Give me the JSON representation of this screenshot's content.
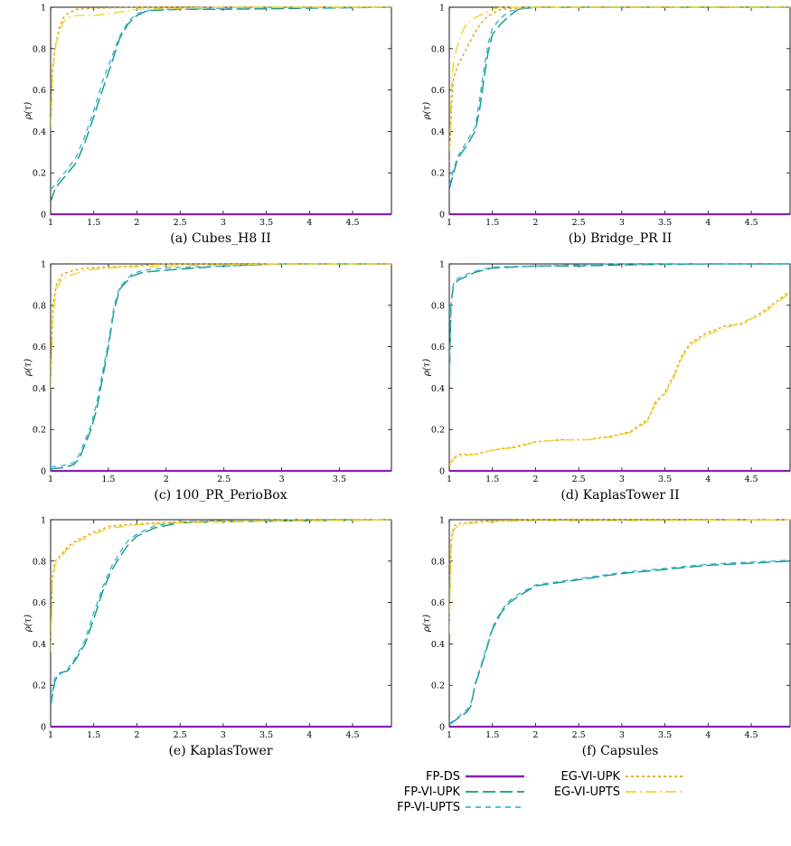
{
  "colors": {
    "fp_ds": "#8b1fb5",
    "fp_vi_upk": "#0f9b7a",
    "fp_vi_upts": "#3fb2e6",
    "eg_vi_upk": "#e3a10c",
    "eg_vi_upts": "#ecd72c"
  },
  "legend": {
    "fp_ds": "FP-DS",
    "fp_vi_upk": "FP-VI-UPK",
    "fp_vi_upts": "FP-VI-UPTS",
    "eg_vi_upk": "EG-VI-UPK",
    "eg_vi_upts": "EG-VI-UPTS"
  },
  "chart_data": [
    {
      "type": "line",
      "title": "(a)  Cubes_H8 II",
      "ylabel": "ρ(τ)",
      "xlabel": "",
      "xlim": [
        1,
        4.95
      ],
      "ylim": [
        0,
        1
      ],
      "xticks": [
        "1",
        "1.5",
        "2",
        "2.5",
        "3",
        "3.5",
        "4",
        "4.5"
      ],
      "yticks": [
        "0",
        "0.2",
        "0.4",
        "0.6",
        "0.8",
        "1"
      ],
      "grid": false,
      "series": [
        {
          "key": "fp_ds",
          "x": [
            1,
            4.95
          ],
          "y": [
            0,
            0
          ]
        },
        {
          "key": "fp_vi_upk",
          "x": [
            1,
            1.05,
            1.1,
            1.2,
            1.3,
            1.4,
            1.5,
            1.6,
            1.7,
            1.8,
            1.9,
            2.0,
            2.1,
            2.2,
            2.5,
            3,
            4,
            4.95
          ],
          "y": [
            0.06,
            0.12,
            0.15,
            0.2,
            0.25,
            0.35,
            0.47,
            0.6,
            0.72,
            0.85,
            0.92,
            0.96,
            0.98,
            0.985,
            0.99,
            0.99,
            0.995,
            1.0
          ]
        },
        {
          "key": "fp_vi_upts",
          "x": [
            1,
            1.05,
            1.1,
            1.2,
            1.3,
            1.4,
            1.5,
            1.6,
            1.7,
            1.8,
            1.9,
            2.0,
            2.1,
            2.2,
            2.5,
            3,
            4,
            4.95
          ],
          "y": [
            0.12,
            0.14,
            0.17,
            0.22,
            0.28,
            0.38,
            0.5,
            0.64,
            0.75,
            0.86,
            0.93,
            0.97,
            0.98,
            0.99,
            0.99,
            0.995,
            1.0,
            1.0
          ]
        },
        {
          "key": "eg_vi_upk",
          "x": [
            1,
            1.02,
            1.05,
            1.1,
            1.15,
            1.2,
            1.3,
            1.5,
            2,
            3,
            4.95
          ],
          "y": [
            0.4,
            0.7,
            0.8,
            0.9,
            0.95,
            0.97,
            0.99,
            0.995,
            1.0,
            1.0,
            1.0
          ]
        },
        {
          "key": "eg_vi_upts",
          "x": [
            1,
            1.02,
            1.05,
            1.1,
            1.15,
            1.2,
            1.3,
            1.5,
            1.7,
            2,
            2.5,
            3,
            4.95
          ],
          "y": [
            0.42,
            0.65,
            0.8,
            0.88,
            0.93,
            0.95,
            0.96,
            0.96,
            0.97,
            0.99,
            0.995,
            1.0,
            1.0
          ]
        }
      ]
    },
    {
      "type": "line",
      "title": "(b) Bridge_PR II",
      "ylabel": "ρ(τ)",
      "xlabel": "",
      "xlim": [
        1,
        4.95
      ],
      "ylim": [
        0,
        1
      ],
      "xticks": [
        "1",
        "1.5",
        "2",
        "2.5",
        "3",
        "3.5",
        "4",
        "4.5"
      ],
      "yticks": [
        "0",
        "0.2",
        "0.4",
        "0.6",
        "0.8",
        "1"
      ],
      "grid": false,
      "series": [
        {
          "key": "fp_ds",
          "x": [
            1,
            4.95
          ],
          "y": [
            0,
            0
          ]
        },
        {
          "key": "fp_vi_upk",
          "x": [
            1,
            1.05,
            1.1,
            1.2,
            1.3,
            1.35,
            1.4,
            1.45,
            1.5,
            1.6,
            1.7,
            1.8,
            2,
            3,
            4.95
          ],
          "y": [
            0.12,
            0.2,
            0.27,
            0.33,
            0.4,
            0.5,
            0.65,
            0.78,
            0.87,
            0.92,
            0.96,
            0.99,
            1.0,
            1.0,
            1.0
          ]
        },
        {
          "key": "fp_vi_upts",
          "x": [
            1,
            1.05,
            1.1,
            1.2,
            1.3,
            1.35,
            1.4,
            1.45,
            1.5,
            1.6,
            1.7,
            1.8,
            2,
            3,
            4.95
          ],
          "y": [
            0.14,
            0.22,
            0.28,
            0.35,
            0.42,
            0.55,
            0.7,
            0.82,
            0.9,
            0.95,
            0.98,
            0.99,
            1.0,
            1.0,
            1.0
          ]
        },
        {
          "key": "eg_vi_upk",
          "x": [
            1,
            1.03,
            1.05,
            1.1,
            1.2,
            1.3,
            1.4,
            1.5,
            1.6,
            2,
            4.95
          ],
          "y": [
            0.25,
            0.55,
            0.66,
            0.72,
            0.8,
            0.88,
            0.94,
            0.97,
            0.99,
            1.0,
            1.0
          ]
        },
        {
          "key": "eg_vi_upts",
          "x": [
            1,
            1.03,
            1.05,
            1.1,
            1.15,
            1.2,
            1.3,
            1.4,
            1.5,
            1.6,
            2,
            4.95
          ],
          "y": [
            0.3,
            0.65,
            0.75,
            0.82,
            0.88,
            0.92,
            0.95,
            0.97,
            0.99,
            1.0,
            1.0,
            1.0
          ]
        }
      ]
    },
    {
      "type": "line",
      "title": "(c) 100_PR_PerioBox",
      "ylabel": "ρ(τ)",
      "xlabel": "",
      "xlim": [
        1,
        3.95
      ],
      "ylim": [
        0,
        1
      ],
      "xticks": [
        "1",
        "1.5",
        "2",
        "2.5",
        "3",
        "3.5"
      ],
      "yticks": [
        "0",
        "0.2",
        "0.4",
        "0.6",
        "0.8",
        "1"
      ],
      "grid": false,
      "series": [
        {
          "key": "fp_ds",
          "x": [
            1,
            3.95
          ],
          "y": [
            0,
            0
          ]
        },
        {
          "key": "fp_vi_upk",
          "x": [
            1,
            1.1,
            1.2,
            1.25,
            1.3,
            1.35,
            1.4,
            1.45,
            1.5,
            1.55,
            1.6,
            1.7,
            1.8,
            2,
            2.5,
            3,
            3.95
          ],
          "y": [
            0.01,
            0.015,
            0.03,
            0.06,
            0.13,
            0.2,
            0.3,
            0.45,
            0.6,
            0.78,
            0.88,
            0.94,
            0.96,
            0.97,
            0.99,
            1.0,
            1.0
          ]
        },
        {
          "key": "fp_vi_upts",
          "x": [
            1,
            1.1,
            1.2,
            1.25,
            1.3,
            1.35,
            1.4,
            1.45,
            1.5,
            1.55,
            1.6,
            1.7,
            1.8,
            2,
            2.5,
            3,
            3.95
          ],
          "y": [
            0.02,
            0.025,
            0.04,
            0.08,
            0.15,
            0.22,
            0.33,
            0.48,
            0.62,
            0.8,
            0.89,
            0.95,
            0.97,
            0.98,
            0.99,
            1.0,
            1.0
          ]
        },
        {
          "key": "eg_vi_upk",
          "x": [
            1,
            1.02,
            1.05,
            1.1,
            1.2,
            1.3,
            1.5,
            1.7,
            2,
            3,
            3.95
          ],
          "y": [
            0.45,
            0.8,
            0.9,
            0.95,
            0.97,
            0.98,
            0.985,
            0.99,
            1.0,
            1.0,
            1.0
          ]
        },
        {
          "key": "eg_vi_upts",
          "x": [
            1,
            1.02,
            1.05,
            1.1,
            1.2,
            1.3,
            1.5,
            1.7,
            2,
            2.5,
            3,
            3.95
          ],
          "y": [
            0.4,
            0.75,
            0.88,
            0.93,
            0.95,
            0.97,
            0.98,
            0.985,
            0.99,
            0.995,
            1.0,
            1.0
          ]
        }
      ]
    },
    {
      "type": "line",
      "title": "(d) KaplasTower II",
      "ylabel": "ρ(τ)",
      "xlabel": "",
      "xlim": [
        1,
        4.95
      ],
      "ylim": [
        0,
        1
      ],
      "xticks": [
        "1",
        "1.5",
        "2",
        "2.5",
        "3",
        "3.5",
        "4",
        "4.5"
      ],
      "yticks": [
        "0",
        "0.2",
        "0.4",
        "0.6",
        "0.8",
        "1"
      ],
      "grid": false,
      "series": [
        {
          "key": "fp_ds",
          "x": [
            1,
            4.95
          ],
          "y": [
            0,
            0
          ]
        },
        {
          "key": "fp_vi_upk",
          "x": [
            1,
            1.02,
            1.05,
            1.1,
            1.2,
            1.3,
            1.5,
            2,
            2.5,
            3,
            4,
            4.95
          ],
          "y": [
            0.42,
            0.8,
            0.9,
            0.92,
            0.94,
            0.96,
            0.98,
            0.99,
            0.99,
            0.995,
            1.0,
            1.0
          ]
        },
        {
          "key": "fp_vi_upts",
          "x": [
            1,
            1.02,
            1.05,
            1.1,
            1.2,
            1.3,
            1.5,
            2,
            2.5,
            3,
            4,
            4.95
          ],
          "y": [
            0.45,
            0.82,
            0.91,
            0.93,
            0.95,
            0.965,
            0.985,
            0.99,
            0.995,
            1.0,
            1.0,
            1.0
          ]
        },
        {
          "key": "eg_vi_upk",
          "x": [
            1,
            1.05,
            1.1,
            1.3,
            1.5,
            1.8,
            2,
            2.3,
            2.6,
            2.9,
            3.1,
            3.3,
            3.4,
            3.5,
            3.6,
            3.7,
            3.8,
            4.0,
            4.2,
            4.4,
            4.6,
            4.8,
            4.95
          ],
          "y": [
            0.02,
            0.06,
            0.08,
            0.08,
            0.1,
            0.12,
            0.14,
            0.15,
            0.15,
            0.17,
            0.19,
            0.25,
            0.33,
            0.38,
            0.46,
            0.56,
            0.62,
            0.67,
            0.7,
            0.71,
            0.76,
            0.82,
            0.87
          ]
        },
        {
          "key": "eg_vi_upts",
          "x": [
            1,
            1.05,
            1.1,
            1.3,
            1.5,
            1.8,
            2,
            2.3,
            2.6,
            2.9,
            3.1,
            3.3,
            3.4,
            3.5,
            3.6,
            3.7,
            3.8,
            4.0,
            4.2,
            4.4,
            4.6,
            4.8,
            4.95
          ],
          "y": [
            0.03,
            0.06,
            0.07,
            0.08,
            0.1,
            0.115,
            0.14,
            0.15,
            0.15,
            0.165,
            0.185,
            0.24,
            0.35,
            0.37,
            0.45,
            0.55,
            0.61,
            0.66,
            0.69,
            0.72,
            0.75,
            0.81,
            0.86
          ]
        }
      ]
    },
    {
      "type": "line",
      "title": "(e) KaplasTower",
      "ylabel": "ρ(τ)",
      "xlabel": "",
      "xlim": [
        1,
        4.95
      ],
      "ylim": [
        0,
        1
      ],
      "xticks": [
        "1",
        "1.5",
        "2",
        "2.5",
        "3",
        "3.5",
        "4",
        "4.5"
      ],
      "yticks": [
        "0",
        "0.2",
        "0.4",
        "0.6",
        "0.8",
        "1"
      ],
      "grid": false,
      "series": [
        {
          "key": "fp_ds",
          "x": [
            1,
            4.95
          ],
          "y": [
            0,
            0
          ]
        },
        {
          "key": "fp_vi_upk",
          "x": [
            1,
            1.05,
            1.1,
            1.2,
            1.3,
            1.4,
            1.5,
            1.6,
            1.7,
            1.8,
            1.9,
            2.0,
            2.2,
            2.5,
            3,
            4,
            4.95
          ],
          "y": [
            0.1,
            0.22,
            0.26,
            0.27,
            0.33,
            0.4,
            0.52,
            0.65,
            0.75,
            0.82,
            0.88,
            0.92,
            0.96,
            0.985,
            0.99,
            0.995,
            1.0
          ]
        },
        {
          "key": "fp_vi_upts",
          "x": [
            1,
            1.05,
            1.1,
            1.2,
            1.3,
            1.4,
            1.5,
            1.6,
            1.7,
            1.8,
            1.9,
            2.0,
            2.2,
            2.5,
            3,
            4,
            4.95
          ],
          "y": [
            0.12,
            0.24,
            0.25,
            0.28,
            0.34,
            0.42,
            0.55,
            0.67,
            0.77,
            0.84,
            0.9,
            0.93,
            0.97,
            0.99,
            0.995,
            1.0,
            1.0
          ]
        },
        {
          "key": "eg_vi_upk",
          "x": [
            1,
            1.02,
            1.05,
            1.1,
            1.2,
            1.3,
            1.5,
            1.7,
            2,
            2.5,
            3,
            4,
            4.95
          ],
          "y": [
            0.38,
            0.72,
            0.8,
            0.82,
            0.87,
            0.9,
            0.94,
            0.97,
            0.98,
            0.99,
            0.995,
            1.0,
            1.0
          ]
        },
        {
          "key": "eg_vi_upts",
          "x": [
            1,
            1.02,
            1.05,
            1.1,
            1.2,
            1.3,
            1.5,
            1.7,
            2,
            2.5,
            3,
            4,
            4.95
          ],
          "y": [
            0.36,
            0.7,
            0.78,
            0.81,
            0.86,
            0.89,
            0.93,
            0.96,
            0.975,
            0.985,
            0.99,
            0.995,
            1.0
          ]
        }
      ]
    },
    {
      "type": "line",
      "title": "(f) Capsules",
      "ylabel": "ρ(τ)",
      "xlabel": "",
      "xlim": [
        1,
        4.95
      ],
      "ylim": [
        0,
        1
      ],
      "xticks": [
        "1",
        "1.5",
        "2",
        "2.5",
        "3",
        "3.5",
        "4",
        "4.5"
      ],
      "yticks": [
        "0",
        "0.2",
        "0.4",
        "0.6",
        "0.8",
        "1"
      ],
      "grid": false,
      "series": [
        {
          "key": "fp_ds",
          "x": [
            1,
            4.95
          ],
          "y": [
            0,
            0
          ]
        },
        {
          "key": "fp_vi_upk",
          "x": [
            1,
            1.1,
            1.2,
            1.25,
            1.3,
            1.4,
            1.5,
            1.6,
            1.7,
            1.8,
            2,
            2.5,
            3,
            3.5,
            4,
            4.5,
            4.95
          ],
          "y": [
            0.01,
            0.04,
            0.07,
            0.1,
            0.2,
            0.33,
            0.47,
            0.55,
            0.6,
            0.63,
            0.68,
            0.71,
            0.74,
            0.76,
            0.78,
            0.79,
            0.8
          ]
        },
        {
          "key": "fp_vi_upts",
          "x": [
            1,
            1.1,
            1.2,
            1.25,
            1.3,
            1.4,
            1.5,
            1.6,
            1.7,
            1.8,
            2,
            2.5,
            3,
            3.5,
            4,
            4.5,
            4.95
          ],
          "y": [
            0.015,
            0.045,
            0.08,
            0.11,
            0.21,
            0.34,
            0.48,
            0.56,
            0.61,
            0.64,
            0.685,
            0.715,
            0.745,
            0.765,
            0.785,
            0.795,
            0.805
          ]
        },
        {
          "key": "eg_vi_upk",
          "x": [
            1,
            1.02,
            1.05,
            1.1,
            1.3,
            1.5,
            2,
            3,
            4.95
          ],
          "y": [
            0.5,
            0.9,
            0.97,
            0.98,
            0.99,
            0.995,
            1.0,
            1.0,
            1.0
          ]
        },
        {
          "key": "eg_vi_upts",
          "x": [
            1,
            1.02,
            1.05,
            1.1,
            1.3,
            1.5,
            2,
            3,
            4.95
          ],
          "y": [
            0.45,
            0.85,
            0.95,
            0.97,
            0.985,
            0.99,
            0.995,
            0.995,
            1.0
          ]
        }
      ]
    }
  ]
}
